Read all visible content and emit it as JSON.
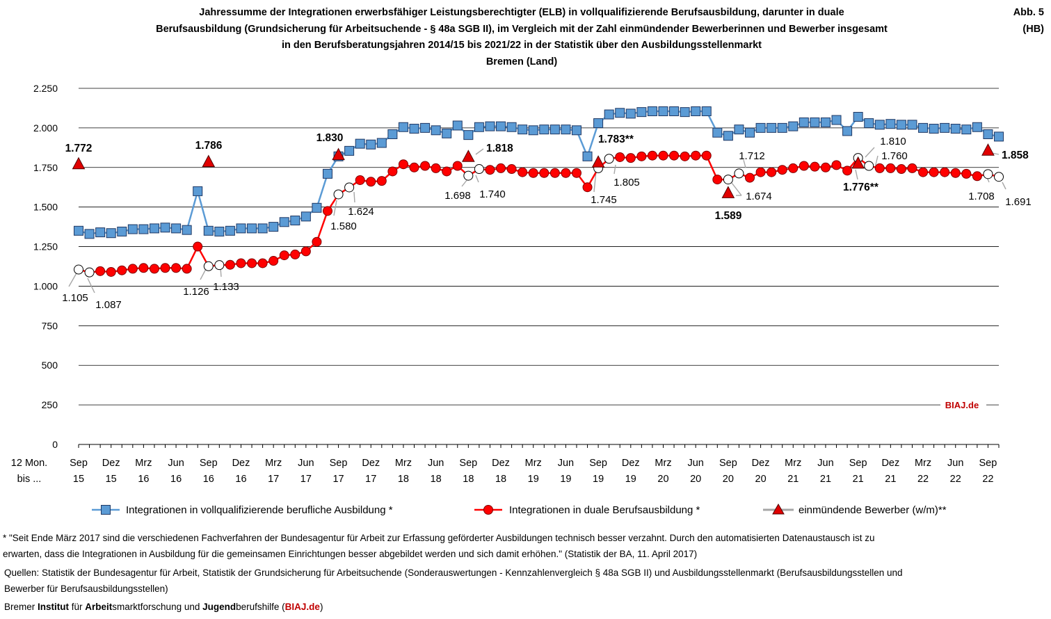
{
  "header": {
    "title_lines": [
      "Jahressumme der Integrationen erwerbsfähiger Leistungsberechtigter (ELB) in vollqualifizierende Berufsausbildung, darunter in duale",
      "Berufsausbildung (Grundsicherung für Arbeitsuchende - § 48a SGB II), im Vergleich mit der Zahl einmündender Bewerberinnen und Bewerber insgesamt",
      "in den Berufsberatungsjahren 2014/15 bis 2021/22  in der Statistik über den Ausbildungsstellenmarkt",
      "Bremen (Land)"
    ],
    "figure_label": "Abb. 5",
    "figure_region": "(HB)"
  },
  "chart_data": {
    "type": "line",
    "ylim": [
      0,
      2250
    ],
    "y_ticks": [
      0,
      250,
      500,
      750,
      1000,
      1250,
      1500,
      1750,
      2000,
      2250
    ],
    "y_tick_labels": [
      "0",
      "250",
      "500",
      "750",
      "1.000",
      "1.250",
      "1.500",
      "1.750",
      "2.000",
      "2.250"
    ],
    "x_axis_label": [
      "12 Mon.",
      "bis ..."
    ],
    "x_tick_labels": [
      [
        "Sep",
        "15"
      ],
      [
        "Dez",
        "15"
      ],
      [
        "Mrz",
        "16"
      ],
      [
        "Jun",
        "16"
      ],
      [
        "Sep",
        "16"
      ],
      [
        "Dez",
        "16"
      ],
      [
        "Mrz",
        "17"
      ],
      [
        "Jun",
        "17"
      ],
      [
        "Sep",
        "17"
      ],
      [
        "Dez",
        "17"
      ],
      [
        "Mrz",
        "18"
      ],
      [
        "Jun",
        "18"
      ],
      [
        "Sep",
        "18"
      ],
      [
        "Dez",
        "18"
      ],
      [
        "Mrz",
        "19"
      ],
      [
        "Jun",
        "19"
      ],
      [
        "Sep",
        "19"
      ],
      [
        "Dez",
        "19"
      ],
      [
        "Mrz",
        "20"
      ],
      [
        "Jun",
        "20"
      ],
      [
        "Sep",
        "20"
      ],
      [
        "Dez",
        "20"
      ],
      [
        "Mrz",
        "21"
      ],
      [
        "Jun",
        "21"
      ],
      [
        "Sep",
        "21"
      ],
      [
        "Dez",
        "21"
      ],
      [
        "Mrz",
        "22"
      ],
      [
        "Jun",
        "22"
      ],
      [
        "Sep",
        "22"
      ]
    ],
    "series": [
      {
        "name": "Integrationen in vollqualifizierende berufliche Ausbildung *",
        "color": "#5b9bd5",
        "marker": "square",
        "values": [
          1350,
          1330,
          1340,
          1335,
          1345,
          1360,
          1360,
          1365,
          1370,
          1365,
          1355,
          1600,
          1350,
          1345,
          1350,
          1365,
          1365,
          1365,
          1375,
          1405,
          1415,
          1440,
          1495,
          1710,
          1820,
          1855,
          1900,
          1895,
          1905,
          1960,
          2005,
          1995,
          2000,
          1985,
          1965,
          2015,
          1955,
          2005,
          2010,
          2010,
          2005,
          1990,
          1985,
          1990,
          1990,
          1990,
          1985,
          1820,
          2030,
          2085,
          2095,
          2090,
          2100,
          2105,
          2105,
          2105,
          2100,
          2105,
          2105,
          1970,
          1950,
          1990,
          1970,
          2000,
          2000,
          2000,
          2010,
          2035,
          2035,
          2035,
          2050,
          1980,
          2070,
          2030,
          2020,
          2025,
          2020,
          2020,
          2000,
          1995,
          2000,
          1995,
          1990,
          2005,
          1960,
          1945
        ]
      },
      {
        "name": "Integrationen in duale Berufsausbildung *",
        "color": "#ff0000",
        "marker": "circle",
        "values": [
          1105,
          1087,
          1095,
          1090,
          1100,
          1110,
          1115,
          1110,
          1115,
          1115,
          1110,
          1250,
          1126,
          1133,
          1135,
          1145,
          1145,
          1145,
          1160,
          1195,
          1200,
          1220,
          1280,
          1475,
          1580,
          1624,
          1670,
          1660,
          1665,
          1725,
          1770,
          1750,
          1760,
          1745,
          1725,
          1760,
          1698,
          1740,
          1735,
          1745,
          1740,
          1720,
          1715,
          1715,
          1715,
          1715,
          1715,
          1625,
          1745,
          1805,
          1815,
          1810,
          1820,
          1825,
          1825,
          1825,
          1820,
          1825,
          1825,
          1674,
          1674,
          1712,
          1685,
          1720,
          1720,
          1735,
          1745,
          1760,
          1755,
          1750,
          1765,
          1730,
          1810,
          1760,
          1745,
          1745,
          1740,
          1745,
          1720,
          1720,
          1720,
          1715,
          1710,
          1695,
          1708,
          1691
        ]
      },
      {
        "name": "einmündende Bewerber (w/m)**",
        "color": "#c00000",
        "marker": "triangle",
        "x_ticks": [
          0,
          4,
          8,
          12,
          16,
          20,
          24,
          28
        ],
        "values": [
          1772,
          1786,
          1830,
          1818,
          1783,
          1589,
          1776,
          1858
        ]
      }
    ],
    "data_labels": [
      {
        "text": "1.772",
        "bold": true
      },
      {
        "text": "1.786",
        "bold": true
      },
      {
        "text": "1.830",
        "bold": true
      },
      {
        "text": "1.818",
        "bold": true
      },
      {
        "text": "1.783**",
        "bold": true
      },
      {
        "text": "1.589",
        "bold": true
      },
      {
        "text": "1.776**",
        "bold": true
      },
      {
        "text": "1.858",
        "bold": true
      },
      {
        "text": "1.105",
        "bold": false
      },
      {
        "text": "1.087",
        "bold": false
      },
      {
        "text": "1.126",
        "bold": false
      },
      {
        "text": "1.133",
        "bold": false
      },
      {
        "text": "1.580",
        "bold": false
      },
      {
        "text": "1.624",
        "bold": false
      },
      {
        "text": "1.698",
        "bold": false
      },
      {
        "text": "1.740",
        "bold": false
      },
      {
        "text": "1.745",
        "bold": false
      },
      {
        "text": "1.805",
        "bold": false
      },
      {
        "text": "1.674",
        "bold": false
      },
      {
        "text": "1.712",
        "bold": false
      },
      {
        "text": "1.810",
        "bold": false
      },
      {
        "text": "1.760",
        "bold": false
      },
      {
        "text": "1.708",
        "bold": false
      },
      {
        "text": "1.691",
        "bold": false
      }
    ],
    "watermark": "BIAJ.de",
    "grid": true,
    "legend_position": "bottom"
  },
  "footer": {
    "note_lines": [
      "* \"Seit Ende März 2017 sind die verschiedenen Fachverfahren der Bundesagentur für Arbeit zur Erfassung geförderter Ausbildungen technisch besser verzahnt. Durch den automatisierten Datenaustausch ist zu",
      "erwarten, dass die Integrationen in Ausbildung für die gemeinsamen Einrichtungen besser abgebildet werden und sich damit erhöhen.\" (Statistik der BA, 11. April  2017)"
    ],
    "source_lines": [
      "Quellen: Statistik der Bundesagentur für Arbeit, Statistik der Grundsicherung für Arbeitsuchende (Sonderauswertungen - Kennzahlenvergleich § 48a SGB II) und Ausbildungsstellenmarkt (Berufsausbildungsstellen und",
      "Bewerber für Berufsausbildungsstellen)"
    ],
    "institute": {
      "p1": "Bremer ",
      "p2": "Institut",
      "p3": " für ",
      "p4": "Arbeit",
      "p5": "smarktforschung und ",
      "p6": "Jugend",
      "p7": "berufshilfe (",
      "p8": "BIAJ.de",
      "p9": ")"
    }
  }
}
